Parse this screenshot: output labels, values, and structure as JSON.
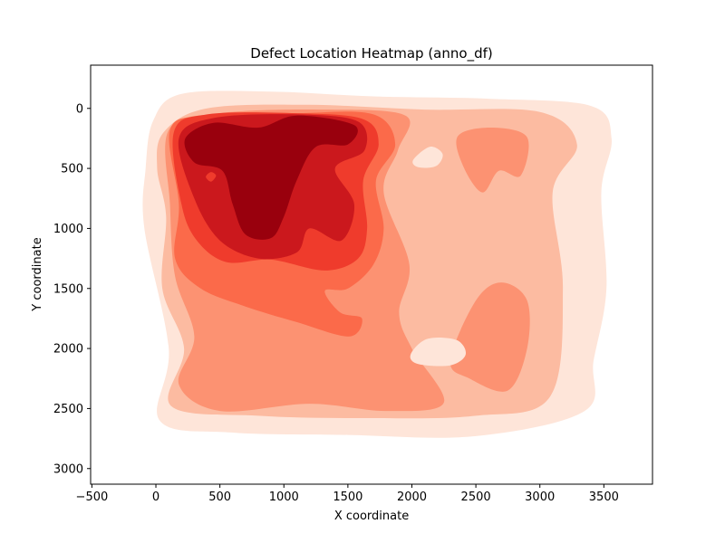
{
  "chart_data": {
    "type": "heatmap",
    "subtype": "kde-filled-contour",
    "title": "Defect Location Heatmap (anno_df)",
    "xlabel": "X coordinate",
    "ylabel": "Y coordinate",
    "xlim": [
      -510,
      3880
    ],
    "ylim": [
      3130,
      -360
    ],
    "y_inverted": true,
    "grid": false,
    "colormap": "Reds",
    "xticks": [
      -500,
      0,
      500,
      1000,
      1500,
      2000,
      2500,
      3000,
      3500
    ],
    "xtick_labels": [
      "−500",
      "0",
      "500",
      "1000",
      "1500",
      "2000",
      "2500",
      "3000",
      "3500"
    ],
    "yticks": [
      0,
      500,
      1000,
      1500,
      2000,
      2500,
      3000
    ],
    "ytick_labels": [
      "0",
      "500",
      "1000",
      "1500",
      "2000",
      "2500",
      "3000"
    ],
    "levels": [
      {
        "level": 1,
        "color": "#fee5d9",
        "regions": [
          {
            "name": "outer-envelope",
            "points": [
              [
                -20,
                100
              ],
              [
                200,
                -120
              ],
              [
                900,
                -140
              ],
              [
                1700,
                -100
              ],
              [
                2600,
                -80
              ],
              [
                3400,
                -20
              ],
              [
                3560,
                250
              ],
              [
                3480,
                700
              ],
              [
                3520,
                1500
              ],
              [
                3420,
                2100
              ],
              [
                3350,
                2520
              ],
              [
                2500,
                2730
              ],
              [
                1500,
                2720
              ],
              [
                600,
                2700
              ],
              [
                30,
                2600
              ],
              [
                100,
                2000
              ],
              [
                -90,
                1000
              ],
              [
                -80,
                500
              ]
            ]
          }
        ]
      },
      {
        "level": 2,
        "color": "#fcbba1",
        "regions": [
          {
            "name": "main-body",
            "points": [
              [
                60,
                200
              ],
              [
                400,
                0
              ],
              [
                1200,
                -30
              ],
              [
                2100,
                10
              ],
              [
                3000,
                30
              ],
              [
                3290,
                300
              ],
              [
                3100,
                700
              ],
              [
                3180,
                1500
              ],
              [
                3080,
                2400
              ],
              [
                2500,
                2560
              ],
              [
                1600,
                2580
              ],
              [
                800,
                2560
              ],
              [
                120,
                2480
              ],
              [
                220,
                2000
              ],
              [
                50,
                1500
              ],
              [
                80,
                900
              ],
              [
                10,
                500
              ]
            ]
          }
        ]
      },
      {
        "level": 3,
        "color": "#fc9272",
        "regions": [
          {
            "name": "left-mass",
            "points": [
              [
                100,
                180
              ],
              [
                500,
                40
              ],
              [
                1300,
                10
              ],
              [
                1950,
                60
              ],
              [
                1890,
                350
              ],
              [
                1780,
                700
              ],
              [
                1980,
                1300
              ],
              [
                1900,
                1700
              ],
              [
                2000,
                2000
              ],
              [
                2250,
                2450
              ],
              [
                1800,
                2520
              ],
              [
                1200,
                2460
              ],
              [
                500,
                2520
              ],
              [
                180,
                2300
              ],
              [
                300,
                1900
              ],
              [
                150,
                1400
              ],
              [
                110,
                800
              ]
            ]
          },
          {
            "name": "right-top-lobe",
            "points": [
              [
                2360,
                230
              ],
              [
                2620,
                160
              ],
              [
                2900,
                240
              ],
              [
                2850,
                560
              ],
              [
                2680,
                520
              ],
              [
                2550,
                700
              ],
              [
                2400,
                480
              ]
            ]
          },
          {
            "name": "bottom-right-lobe",
            "points": [
              [
                2500,
                1600
              ],
              [
                2700,
                1450
              ],
              [
                2900,
                1600
              ],
              [
                2900,
                2000
              ],
              [
                2750,
                2350
              ],
              [
                2450,
                2250
              ],
              [
                2300,
                2100
              ]
            ]
          }
        ]
      },
      {
        "level": 4,
        "color": "#fb6a4a",
        "regions": [
          {
            "name": "upper-left-core",
            "points": [
              [
                110,
                180
              ],
              [
                400,
                60
              ],
              [
                1100,
                40
              ],
              [
                1700,
                50
              ],
              [
                1870,
                300
              ],
              [
                1720,
                600
              ],
              [
                1780,
                1000
              ],
              [
                1700,
                1300
              ],
              [
                1500,
                1500
              ],
              [
                1320,
                1520
              ],
              [
                1440,
                1700
              ],
              [
                1610,
                1750
              ],
              [
                1510,
                1900
              ],
              [
                1100,
                1780
              ],
              [
                700,
                1650
              ],
              [
                350,
                1500
              ],
              [
                150,
                1250
              ],
              [
                180,
                800
              ]
            ]
          }
        ]
      },
      {
        "level": 5,
        "color": "#ef3b2c",
        "regions": [
          {
            "name": "inner-core",
            "points": [
              [
                140,
                200
              ],
              [
                400,
                50
              ],
              [
                1100,
                40
              ],
              [
                1620,
                90
              ],
              [
                1740,
                300
              ],
              [
                1620,
                600
              ],
              [
                1650,
                1000
              ],
              [
                1580,
                1250
              ],
              [
                1320,
                1350
              ],
              [
                900,
                1260
              ],
              [
                550,
                1280
              ],
              [
                320,
                1100
              ],
              [
                200,
                800
              ]
            ]
          }
        ]
      },
      {
        "level": 6,
        "color": "#cb181d",
        "regions": [
          {
            "name": "hot-zone",
            "points": [
              [
                180,
                250
              ],
              [
                450,
                80
              ],
              [
                1100,
                50
              ],
              [
                1580,
                110
              ],
              [
                1630,
                350
              ],
              [
                1400,
                500
              ],
              [
                1550,
                800
              ],
              [
                1450,
                1100
              ],
              [
                1200,
                1000
              ],
              [
                1100,
                1200
              ],
              [
                800,
                1250
              ],
              [
                500,
                1100
              ],
              [
                300,
                750
              ]
            ]
          }
        ]
      },
      {
        "level": 7,
        "color": "#99000d",
        "regions": [
          {
            "name": "peak-zone",
            "points": [
              [
                230,
                250
              ],
              [
                450,
                120
              ],
              [
                800,
                160
              ],
              [
                1100,
                60
              ],
              [
                1550,
                140
              ],
              [
                1500,
                300
              ],
              [
                1250,
                320
              ],
              [
                1100,
                600
              ],
              [
                1000,
                900
              ],
              [
                900,
                1080
              ],
              [
                700,
                1050
              ],
              [
                600,
                800
              ],
              [
                520,
                520
              ],
              [
                300,
                450
              ]
            ]
          }
        ]
      }
    ],
    "holes": [
      {
        "name": "hole-upper-right",
        "color": "#fee5d9",
        "points": [
          [
            2010,
            430
          ],
          [
            2140,
            320
          ],
          [
            2240,
            380
          ],
          [
            2190,
            480
          ],
          [
            2050,
            490
          ]
        ]
      },
      {
        "name": "hole-lower-right",
        "color": "#fee5d9",
        "points": [
          [
            1990,
            2050
          ],
          [
            2120,
            1920
          ],
          [
            2350,
            1930
          ],
          [
            2420,
            2050
          ],
          [
            2300,
            2140
          ],
          [
            2050,
            2130
          ]
        ]
      },
      {
        "name": "spot-small",
        "color": "#ef3b2c",
        "points": [
          [
            390,
            570
          ],
          [
            430,
            530
          ],
          [
            470,
            560
          ],
          [
            430,
            610
          ]
        ]
      }
    ]
  }
}
